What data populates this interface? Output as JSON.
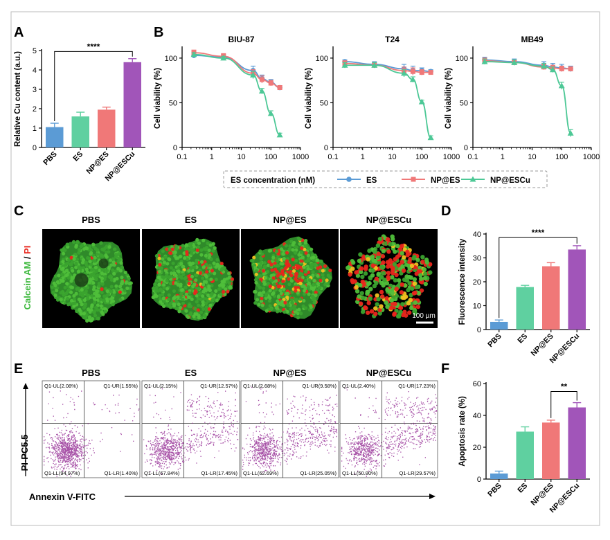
{
  "colors": {
    "ES": "#5B9BD5",
    "NP@ES": "#F07878",
    "NP@ESCu": "#4DC896",
    "bar_PBS": "#5B9BD5",
    "bar_ES": "#5FD0A0",
    "bar_NPES": "#F07878",
    "bar_NPESCu": "#A155B9",
    "scatter": "#8B1A8B",
    "frame": "#bbbbbb"
  },
  "panels": {
    "A": "A",
    "B": "B",
    "C": "C",
    "D": "D",
    "E": "E",
    "F": "F"
  },
  "panel_C": {
    "titles": [
      "PBS",
      "ES",
      "NP@ES",
      "NP@ESCu"
    ],
    "stain_calcein": "Calcein AM",
    "stain_sep": " / ",
    "stain_pi": "PI",
    "scale_bar": "100 µm"
  },
  "panel_E": {
    "titles": [
      "PBS",
      "ES",
      "NP@ES",
      "NP@ESCu"
    ],
    "ylabel": "PI-PC5.5",
    "xlabel": "Annexin V-FITC",
    "quadrants": [
      {
        "UL": "Q1-UL(2.08%)",
        "UR": "Q1-UR(1.55%)",
        "LL": "Q1-LL(94.97%)",
        "LR": "Q1-LR(1.40%)"
      },
      {
        "UL": "Q1-UL(2.15%)",
        "UR": "Q1-UR(12.57%)",
        "LL": "Q1-LL(67.84%)",
        "LR": "Q1-LR(17.45%)"
      },
      {
        "UL": "Q1-UL(2.68%)",
        "UR": "Q1-UR(9.58%)",
        "LL": "Q1-LL(62.69%)",
        "LR": "Q1-LR(25.05%)"
      },
      {
        "UL": "Q1-UL(2.40%)",
        "UR": "Q1-UR(17.23%)",
        "LL": "Q1-LL(50.80%)",
        "LR": "Q1-LR(29.57%)"
      }
    ]
  },
  "legend_B": {
    "title": "ES concentration (nM)",
    "items": [
      "ES",
      "NP@ES",
      "NP@ESCu"
    ]
  },
  "chart_data": [
    {
      "id": "A",
      "type": "bar",
      "categories": [
        "PBS",
        "ES",
        "NP@ES",
        "NP@ESCu"
      ],
      "values": [
        1.05,
        1.6,
        1.95,
        4.4
      ],
      "errors": [
        0.2,
        0.22,
        0.13,
        0.18
      ],
      "ylabel": "Relative Cu content (a.u.)",
      "ylim": [
        0,
        5
      ],
      "yticks": [
        0,
        1,
        2,
        3,
        4,
        5
      ],
      "significance": {
        "from": "PBS",
        "to": "NP@ESCu",
        "label": "****"
      }
    },
    {
      "id": "B1",
      "type": "line",
      "title": "BIU-87",
      "xscale": "log",
      "xlim": [
        0.1,
        1000
      ],
      "xticks": [
        "0.1",
        "1",
        "10",
        "100",
        "1000"
      ],
      "ylim": [
        0,
        110
      ],
      "yticks": [
        0,
        50,
        100
      ],
      "ylabel": "Cell viability (%)",
      "x": [
        0.25,
        2.5,
        25,
        50,
        100,
        200
      ],
      "series": [
        {
          "name": "ES",
          "values": [
            103,
            101,
            86,
            77,
            73,
            67
          ],
          "errors": [
            3,
            3,
            5,
            4,
            3,
            2
          ]
        },
        {
          "name": "NP@ES",
          "values": [
            106,
            102,
            83,
            76,
            72,
            67
          ],
          "errors": [
            3,
            3,
            4,
            4,
            3,
            2
          ]
        },
        {
          "name": "NP@ESCu",
          "values": [
            104,
            100,
            81,
            63,
            38,
            14
          ],
          "errors": [
            2,
            2,
            4,
            3,
            3,
            2
          ]
        }
      ]
    },
    {
      "id": "B2",
      "type": "line",
      "title": "T24",
      "xscale": "log",
      "xlim": [
        0.1,
        1000
      ],
      "xticks": [
        "0.1",
        "1",
        "10",
        "100",
        "1000"
      ],
      "ylim": [
        0,
        110
      ],
      "yticks": [
        0,
        50,
        100
      ],
      "ylabel": "Cell viability (%)",
      "x": [
        0.25,
        2.5,
        25,
        50,
        100,
        200
      ],
      "series": [
        {
          "name": "ES",
          "values": [
            96,
            93,
            88,
            86,
            86,
            85
          ],
          "errors": [
            2,
            3,
            5,
            5,
            3,
            2
          ]
        },
        {
          "name": "NP@ES",
          "values": [
            94,
            92,
            86,
            85,
            84,
            84
          ],
          "errors": [
            3,
            3,
            4,
            4,
            3,
            2
          ]
        },
        {
          "name": "NP@ESCu",
          "values": [
            92,
            92,
            83,
            76,
            51,
            11
          ],
          "errors": [
            3,
            3,
            4,
            3,
            2,
            2
          ]
        }
      ]
    },
    {
      "id": "B3",
      "type": "line",
      "title": "MB49",
      "xscale": "log",
      "xlim": [
        0.1,
        1000
      ],
      "xticks": [
        "0.1",
        "1",
        "10",
        "100",
        "1000"
      ],
      "ylim": [
        0,
        110
      ],
      "yticks": [
        0,
        50,
        100
      ],
      "ylabel": "Cell viability (%)",
      "x": [
        0.25,
        2.5,
        25,
        50,
        100,
        200
      ],
      "series": [
        {
          "name": "ES",
          "values": [
            98,
            96,
            92,
            90,
            89,
            88
          ],
          "errors": [
            3,
            3,
            4,
            4,
            4,
            3
          ]
        },
        {
          "name": "NP@ES",
          "values": [
            97,
            95,
            90,
            89,
            88,
            88
          ],
          "errors": [
            3,
            3,
            3,
            3,
            3,
            2
          ]
        },
        {
          "name": "NP@ESCu",
          "values": [
            96,
            95,
            91,
            87,
            69,
            16
          ],
          "errors": [
            3,
            3,
            3,
            3,
            4,
            4
          ]
        }
      ]
    },
    {
      "id": "D",
      "type": "bar",
      "categories": [
        "PBS",
        "ES",
        "NP@ES",
        "NP@ESCu"
      ],
      "values": [
        3.2,
        17.8,
        26.5,
        33.5
      ],
      "errors": [
        0.8,
        0.7,
        1.5,
        1.6
      ],
      "ylabel": "Fluorescence intensity",
      "ylim": [
        0,
        40
      ],
      "yticks": [
        0,
        10,
        20,
        30,
        40
      ],
      "significance": {
        "from": "PBS",
        "to": "NP@ESCu",
        "label": "****"
      }
    },
    {
      "id": "F",
      "type": "bar",
      "categories": [
        "PBS",
        "ES",
        "NP@ES",
        "NP@ESCu"
      ],
      "values": [
        3.5,
        29.8,
        35.5,
        45.0
      ],
      "errors": [
        1.5,
        3.0,
        1.5,
        3.0
      ],
      "ylabel": "Apoptosis rate (%)",
      "ylim": [
        0,
        60
      ],
      "yticks": [
        0,
        20,
        40,
        60
      ],
      "significance": {
        "from": "NP@ES",
        "to": "NP@ESCu",
        "label": "**"
      }
    }
  ]
}
